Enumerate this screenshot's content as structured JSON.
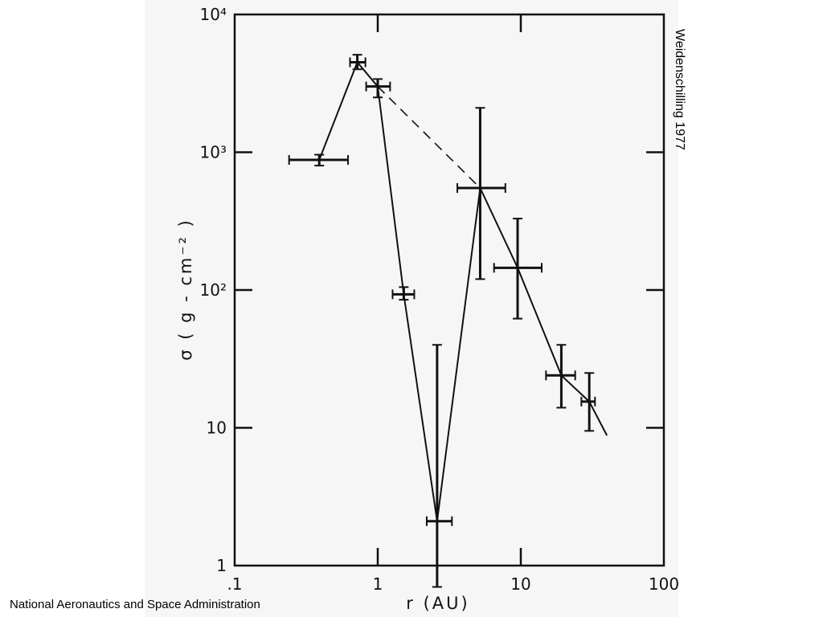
{
  "slide": {
    "credit": "Weidenschilling 1977",
    "footer": "National Aeronautics and Space Administration"
  },
  "chart_data": {
    "type": "scatter",
    "title": "",
    "xlabel": "r (AU)",
    "ylabel": "σ ( g - cm⁻² )",
    "xscale": "log",
    "yscale": "log",
    "xlim": [
      0.1,
      100
    ],
    "ylim": [
      1,
      10000
    ],
    "x_tick_labels": [
      ".1",
      "1",
      "10",
      "100"
    ],
    "y_tick_labels": [
      "1",
      "10",
      "10²",
      "10³",
      "10⁴"
    ],
    "grid": false,
    "points": [
      {
        "x": 0.39,
        "y": 880,
        "xerr": [
          0.24,
          0.62
        ],
        "yerr": [
          800,
          960
        ]
      },
      {
        "x": 0.72,
        "y": 4500,
        "xerr": [
          0.64,
          0.82
        ],
        "yerr": [
          4000,
          5100
        ]
      },
      {
        "x": 1.0,
        "y": 3000,
        "xerr": [
          0.83,
          1.22
        ],
        "yerr": [
          2500,
          3400
        ]
      },
      {
        "x": 1.52,
        "y": 93,
        "xerr": [
          1.27,
          1.8
        ],
        "yerr": [
          85,
          105
        ]
      },
      {
        "x": 2.6,
        "y": 2.1,
        "xerr": [
          2.2,
          3.3
        ],
        "yerr": [
          0.7,
          40
        ]
      },
      {
        "x": 5.2,
        "y": 550,
        "xerr": [
          3.6,
          7.8
        ],
        "yerr": [
          120,
          2100
        ]
      },
      {
        "x": 9.5,
        "y": 145,
        "xerr": [
          6.5,
          14
        ],
        "yerr": [
          62,
          330
        ]
      },
      {
        "x": 19.2,
        "y": 24,
        "xerr": [
          15,
          24
        ],
        "yerr": [
          14,
          40
        ]
      },
      {
        "x": 30.1,
        "y": 15.5,
        "xerr": [
          26.5,
          33
        ],
        "yerr": [
          9.5,
          25
        ]
      }
    ],
    "solid_line_order": [
      0,
      1,
      2,
      3,
      4,
      5,
      6,
      7,
      8
    ],
    "solid_line_end": {
      "x": 40,
      "y": 8.8
    },
    "dashed_line": [
      {
        "x": 1.0,
        "y": 3000
      },
      {
        "x": 5.2,
        "y": 550
      }
    ]
  }
}
